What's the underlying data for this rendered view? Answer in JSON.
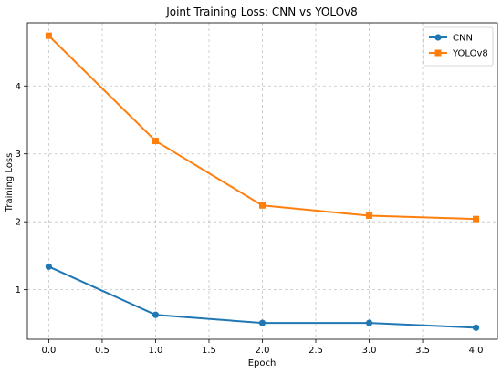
{
  "chart_data": {
    "type": "line",
    "title": "Joint Training Loss: CNN vs YOLOv8",
    "xlabel": "Epoch",
    "ylabel": "Training Loss",
    "x": [
      0,
      1,
      2,
      3,
      4
    ],
    "xlim": [
      -0.2,
      4.2
    ],
    "ylim": [
      0.27,
      4.93
    ],
    "xticks": [
      0.0,
      0.5,
      1.0,
      1.5,
      2.0,
      2.5,
      3.0,
      3.5,
      4.0
    ],
    "xtick_labels": [
      "0.0",
      "0.5",
      "1.0",
      "1.5",
      "2.0",
      "2.5",
      "3.0",
      "3.5",
      "4.0"
    ],
    "yticks": [
      1,
      2,
      3,
      4
    ],
    "ytick_labels": [
      "1",
      "2",
      "3",
      "4"
    ],
    "grid": true,
    "legend_position": "top-right",
    "series": [
      {
        "name": "CNN",
        "marker": "circle",
        "color": "#1f77b4",
        "values": [
          1.34,
          0.63,
          0.51,
          0.51,
          0.44
        ]
      },
      {
        "name": "YOLOv8",
        "marker": "square",
        "color": "#ff7f0e",
        "values": [
          4.74,
          3.19,
          2.24,
          2.09,
          2.04
        ]
      }
    ]
  }
}
